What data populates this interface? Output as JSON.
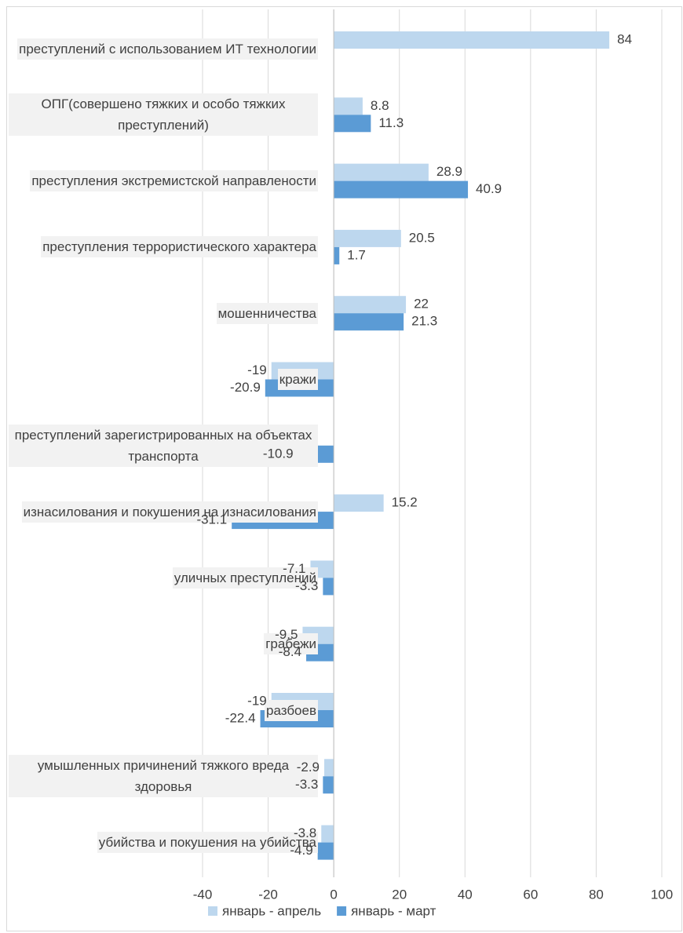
{
  "chart_data": {
    "type": "bar",
    "orientation": "horizontal",
    "categories": [
      "преступлений с использованием ИТ технологии",
      "ОПГ(совершено тяжких и особо тяжких преступлений)",
      "преступления экстремистской направлености",
      "преступления террористического характера",
      "мошенничества",
      "кражи",
      "преступлений зарегистрированных на объектах транспорта",
      "изнасилования и покушения на изнасилования",
      "уличных преступлений",
      "грабежи",
      "разбоев",
      "умышленных причинений тяжкого вреда здоровья",
      "убийства и покушения на убийства"
    ],
    "series": [
      {
        "name": "январь - апрель",
        "color": "#bdd7ee",
        "values": [
          84,
          8.8,
          28.9,
          20.5,
          22,
          -19,
          null,
          15.2,
          -7.1,
          -9.5,
          -19,
          -2.9,
          -3.8
        ]
      },
      {
        "name": "январь - март",
        "color": "#5b9bd5",
        "values": [
          null,
          11.3,
          40.9,
          1.7,
          21.3,
          -20.9,
          -10.9,
          -31.1,
          -3.3,
          -8.4,
          -22.4,
          -3.3,
          -4.9
        ]
      }
    ],
    "xlim": [
      -40,
      100
    ],
    "xticks": [
      -40,
      -20,
      0,
      20,
      40,
      60,
      80,
      100
    ],
    "grid": true,
    "legend": "bottom"
  }
}
